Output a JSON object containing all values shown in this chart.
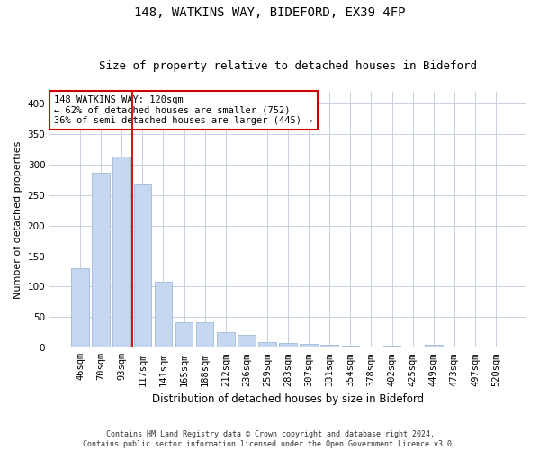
{
  "title1": "148, WATKINS WAY, BIDEFORD, EX39 4FP",
  "title2": "Size of property relative to detached houses in Bideford",
  "xlabel": "Distribution of detached houses by size in Bideford",
  "ylabel": "Number of detached properties",
  "footnote": "Contains HM Land Registry data © Crown copyright and database right 2024.\nContains public sector information licensed under the Open Government Licence v3.0.",
  "bar_labels": [
    "46sqm",
    "70sqm",
    "93sqm",
    "117sqm",
    "141sqm",
    "165sqm",
    "188sqm",
    "212sqm",
    "236sqm",
    "259sqm",
    "283sqm",
    "307sqm",
    "331sqm",
    "354sqm",
    "378sqm",
    "402sqm",
    "425sqm",
    "449sqm",
    "473sqm",
    "497sqm",
    "520sqm"
  ],
  "bar_values": [
    130,
    287,
    313,
    268,
    108,
    42,
    42,
    25,
    21,
    10,
    8,
    7,
    5,
    3,
    0,
    4,
    0,
    5,
    0,
    0,
    0
  ],
  "bar_color": "#c5d8f0",
  "bar_edgecolor": "#a0b8d8",
  "vline_color": "#cc0000",
  "annotation_text": "148 WATKINS WAY: 120sqm\n← 62% of detached houses are smaller (752)\n36% of semi-detached houses are larger (445) →",
  "annotation_box_edgecolor": "#cc0000",
  "annotation_box_facecolor": "#ffffff",
  "ylim": [
    0,
    420
  ],
  "yticks": [
    0,
    50,
    100,
    150,
    200,
    250,
    300,
    350,
    400
  ],
  "background_color": "#ffffff",
  "grid_color": "#c8cfe0",
  "title1_fontsize": 10,
  "title2_fontsize": 9,
  "xlabel_fontsize": 8.5,
  "ylabel_fontsize": 8,
  "tick_fontsize": 7.5,
  "annotation_fontsize": 7.5,
  "footnote_fontsize": 6
}
